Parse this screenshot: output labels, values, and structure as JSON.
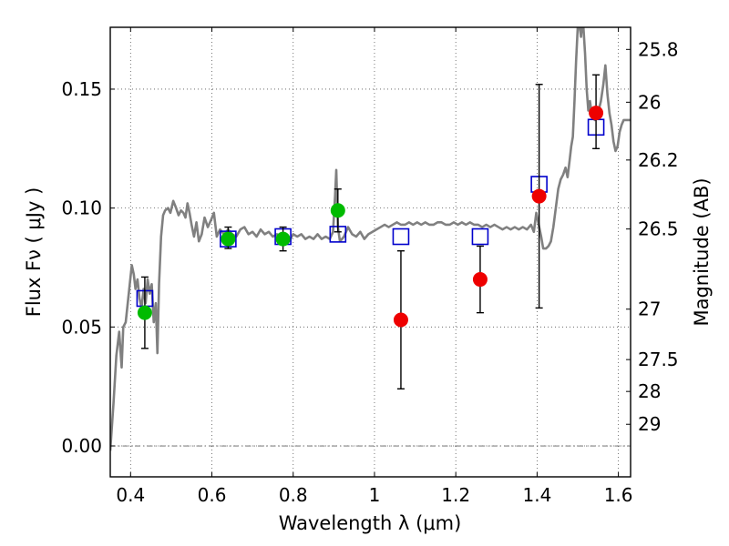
{
  "chart_data": {
    "type": "scatter",
    "xlabel": "Wavelength  λ (μm)",
    "ylabel": "Flux  Fν  ( μJy )",
    "y2label": "Magnitude (AB)",
    "xlim": [
      0.35,
      1.63
    ],
    "ylim": [
      -0.013,
      0.176
    ],
    "x_ticks": [
      0.4,
      0.6,
      0.8,
      1.0,
      1.2,
      1.4,
      1.6
    ],
    "x_tick_labels": [
      "0.4",
      "0.6",
      "0.8",
      "1",
      "1.2",
      "1.4",
      "1.6"
    ],
    "y_ticks": [
      0.0,
      0.05,
      0.1,
      0.15
    ],
    "y_tick_labels": [
      "0.00",
      "0.05",
      "0.10",
      "0.15"
    ],
    "mag_ticks": [
      {
        "flux": 0.1667,
        "label": "25.8"
      },
      {
        "flux": 0.1445,
        "label": "26"
      },
      {
        "flux": 0.1202,
        "label": "26.2"
      },
      {
        "flux": 0.0912,
        "label": "26.5"
      },
      {
        "flux": 0.0575,
        "label": "27"
      },
      {
        "flux": 0.0363,
        "label": "27.5"
      },
      {
        "flux": 0.0229,
        "label": "28"
      },
      {
        "flux": 0.0091,
        "label": "29"
      }
    ],
    "grid": true,
    "colors": {
      "sed_model": "#808080",
      "model_box": "#0000cc",
      "green_point": "#00bb00",
      "red_point": "#ee0000",
      "errorbar": "#000000",
      "zero_line": "#606060"
    },
    "model_boxes": [
      {
        "x": 0.435,
        "y": 0.062
      },
      {
        "x": 0.64,
        "y": 0.087
      },
      {
        "x": 0.775,
        "y": 0.088
      },
      {
        "x": 0.91,
        "y": 0.089
      },
      {
        "x": 1.065,
        "y": 0.088
      },
      {
        "x": 1.26,
        "y": 0.088
      },
      {
        "x": 1.405,
        "y": 0.11
      },
      {
        "x": 1.545,
        "y": 0.134
      }
    ],
    "measurements": [
      {
        "x": 0.435,
        "y": 0.056,
        "err_low": 0.041,
        "err_high": 0.071,
        "color": "green"
      },
      {
        "x": 0.64,
        "y": 0.087,
        "err_low": 0.083,
        "err_high": 0.092,
        "color": "green"
      },
      {
        "x": 0.775,
        "y": 0.087,
        "err_low": 0.082,
        "err_high": 0.092,
        "color": "green"
      },
      {
        "x": 0.91,
        "y": 0.099,
        "err_low": 0.09,
        "err_high": 0.108,
        "color": "green"
      },
      {
        "x": 1.065,
        "y": 0.053,
        "err_low": 0.024,
        "err_high": 0.082,
        "color": "red"
      },
      {
        "x": 1.26,
        "y": 0.07,
        "err_low": 0.056,
        "err_high": 0.084,
        "color": "red"
      },
      {
        "x": 1.405,
        "y": 0.105,
        "err_low": 0.058,
        "err_high": 0.152,
        "color": "red"
      },
      {
        "x": 1.545,
        "y": 0.14,
        "err_low": 0.125,
        "err_high": 0.156,
        "color": "red"
      }
    ],
    "sed_model": [
      [
        0.35,
        -0.002
      ],
      [
        0.358,
        0.018
      ],
      [
        0.365,
        0.038
      ],
      [
        0.372,
        0.048
      ],
      [
        0.378,
        0.033
      ],
      [
        0.382,
        0.05
      ],
      [
        0.388,
        0.052
      ],
      [
        0.393,
        0.06
      ],
      [
        0.398,
        0.068
      ],
      [
        0.403,
        0.076
      ],
      [
        0.408,
        0.072
      ],
      [
        0.412,
        0.066
      ],
      [
        0.417,
        0.07
      ],
      [
        0.422,
        0.062
      ],
      [
        0.427,
        0.058
      ],
      [
        0.432,
        0.066
      ],
      [
        0.437,
        0.06
      ],
      [
        0.442,
        0.07
      ],
      [
        0.447,
        0.064
      ],
      [
        0.452,
        0.068
      ],
      [
        0.457,
        0.052
      ],
      [
        0.462,
        0.06
      ],
      [
        0.466,
        0.039
      ],
      [
        0.47,
        0.068
      ],
      [
        0.475,
        0.088
      ],
      [
        0.48,
        0.097
      ],
      [
        0.485,
        0.099
      ],
      [
        0.492,
        0.1
      ],
      [
        0.498,
        0.098
      ],
      [
        0.505,
        0.103
      ],
      [
        0.512,
        0.1
      ],
      [
        0.518,
        0.097
      ],
      [
        0.524,
        0.099
      ],
      [
        0.53,
        0.098
      ],
      [
        0.535,
        0.096
      ],
      [
        0.54,
        0.102
      ],
      [
        0.545,
        0.098
      ],
      [
        0.55,
        0.093
      ],
      [
        0.556,
        0.088
      ],
      [
        0.562,
        0.094
      ],
      [
        0.568,
        0.086
      ],
      [
        0.575,
        0.089
      ],
      [
        0.582,
        0.096
      ],
      [
        0.59,
        0.092
      ],
      [
        0.598,
        0.095
      ],
      [
        0.605,
        0.098
      ],
      [
        0.612,
        0.088
      ],
      [
        0.62,
        0.091
      ],
      [
        0.63,
        0.089
      ],
      [
        0.64,
        0.091
      ],
      [
        0.65,
        0.089
      ],
      [
        0.66,
        0.088
      ],
      [
        0.67,
        0.091
      ],
      [
        0.68,
        0.092
      ],
      [
        0.69,
        0.089
      ],
      [
        0.7,
        0.09
      ],
      [
        0.71,
        0.088
      ],
      [
        0.72,
        0.091
      ],
      [
        0.73,
        0.089
      ],
      [
        0.74,
        0.09
      ],
      [
        0.75,
        0.088
      ],
      [
        0.76,
        0.089
      ],
      [
        0.77,
        0.087
      ],
      [
        0.78,
        0.088
      ],
      [
        0.79,
        0.086
      ],
      [
        0.8,
        0.089
      ],
      [
        0.81,
        0.088
      ],
      [
        0.82,
        0.089
      ],
      [
        0.83,
        0.087
      ],
      [
        0.84,
        0.088
      ],
      [
        0.85,
        0.087
      ],
      [
        0.86,
        0.089
      ],
      [
        0.87,
        0.087
      ],
      [
        0.88,
        0.088
      ],
      [
        0.89,
        0.087
      ],
      [
        0.898,
        0.09
      ],
      [
        0.903,
        0.105
      ],
      [
        0.906,
        0.116
      ],
      [
        0.91,
        0.092
      ],
      [
        0.915,
        0.086
      ],
      [
        0.925,
        0.088
      ],
      [
        0.935,
        0.092
      ],
      [
        0.945,
        0.089
      ],
      [
        0.955,
        0.088
      ],
      [
        0.965,
        0.09
      ],
      [
        0.975,
        0.087
      ],
      [
        0.985,
        0.089
      ],
      [
        0.995,
        0.09
      ],
      [
        1.005,
        0.091
      ],
      [
        1.015,
        0.092
      ],
      [
        1.025,
        0.093
      ],
      [
        1.035,
        0.092
      ],
      [
        1.045,
        0.093
      ],
      [
        1.055,
        0.094
      ],
      [
        1.065,
        0.093
      ],
      [
        1.075,
        0.093
      ],
      [
        1.085,
        0.094
      ],
      [
        1.095,
        0.093
      ],
      [
        1.105,
        0.094
      ],
      [
        1.115,
        0.093
      ],
      [
        1.125,
        0.094
      ],
      [
        1.135,
        0.093
      ],
      [
        1.145,
        0.093
      ],
      [
        1.155,
        0.094
      ],
      [
        1.165,
        0.094
      ],
      [
        1.175,
        0.093
      ],
      [
        1.185,
        0.093
      ],
      [
        1.195,
        0.094
      ],
      [
        1.205,
        0.093
      ],
      [
        1.215,
        0.094
      ],
      [
        1.225,
        0.093
      ],
      [
        1.235,
        0.094
      ],
      [
        1.245,
        0.093
      ],
      [
        1.255,
        0.093
      ],
      [
        1.265,
        0.092
      ],
      [
        1.275,
        0.093
      ],
      [
        1.285,
        0.092
      ],
      [
        1.295,
        0.093
      ],
      [
        1.305,
        0.092
      ],
      [
        1.315,
        0.091
      ],
      [
        1.325,
        0.092
      ],
      [
        1.335,
        0.091
      ],
      [
        1.345,
        0.092
      ],
      [
        1.355,
        0.091
      ],
      [
        1.365,
        0.092
      ],
      [
        1.375,
        0.091
      ],
      [
        1.385,
        0.093
      ],
      [
        1.392,
        0.09
      ],
      [
        1.398,
        0.098
      ],
      [
        1.404,
        0.093
      ],
      [
        1.41,
        0.088
      ],
      [
        1.415,
        0.083
      ],
      [
        1.422,
        0.083
      ],
      [
        1.428,
        0.084
      ],
      [
        1.434,
        0.086
      ],
      [
        1.44,
        0.092
      ],
      [
        1.446,
        0.1
      ],
      [
        1.452,
        0.108
      ],
      [
        1.458,
        0.112
      ],
      [
        1.464,
        0.114
      ],
      [
        1.47,
        0.117
      ],
      [
        1.475,
        0.113
      ],
      [
        1.48,
        0.12
      ],
      [
        1.484,
        0.126
      ],
      [
        1.488,
        0.13
      ],
      [
        1.492,
        0.145
      ],
      [
        1.496,
        0.162
      ],
      [
        1.5,
        0.176
      ],
      [
        1.505,
        0.176
      ],
      [
        1.508,
        0.172
      ],
      [
        1.51,
        0.176
      ],
      [
        1.514,
        0.176
      ],
      [
        1.518,
        0.165
      ],
      [
        1.522,
        0.15
      ],
      [
        1.526,
        0.141
      ],
      [
        1.53,
        0.145
      ],
      [
        1.535,
        0.139
      ],
      [
        1.542,
        0.137
      ],
      [
        1.55,
        0.14
      ],
      [
        1.557,
        0.145
      ],
      [
        1.563,
        0.152
      ],
      [
        1.568,
        0.16
      ],
      [
        1.573,
        0.148
      ],
      [
        1.578,
        0.14
      ],
      [
        1.583,
        0.135
      ],
      [
        1.588,
        0.128
      ],
      [
        1.593,
        0.124
      ],
      [
        1.598,
        0.126
      ],
      [
        1.603,
        0.132
      ],
      [
        1.608,
        0.135
      ],
      [
        1.613,
        0.137
      ],
      [
        1.62,
        0.137
      ],
      [
        1.63,
        0.137
      ]
    ]
  }
}
